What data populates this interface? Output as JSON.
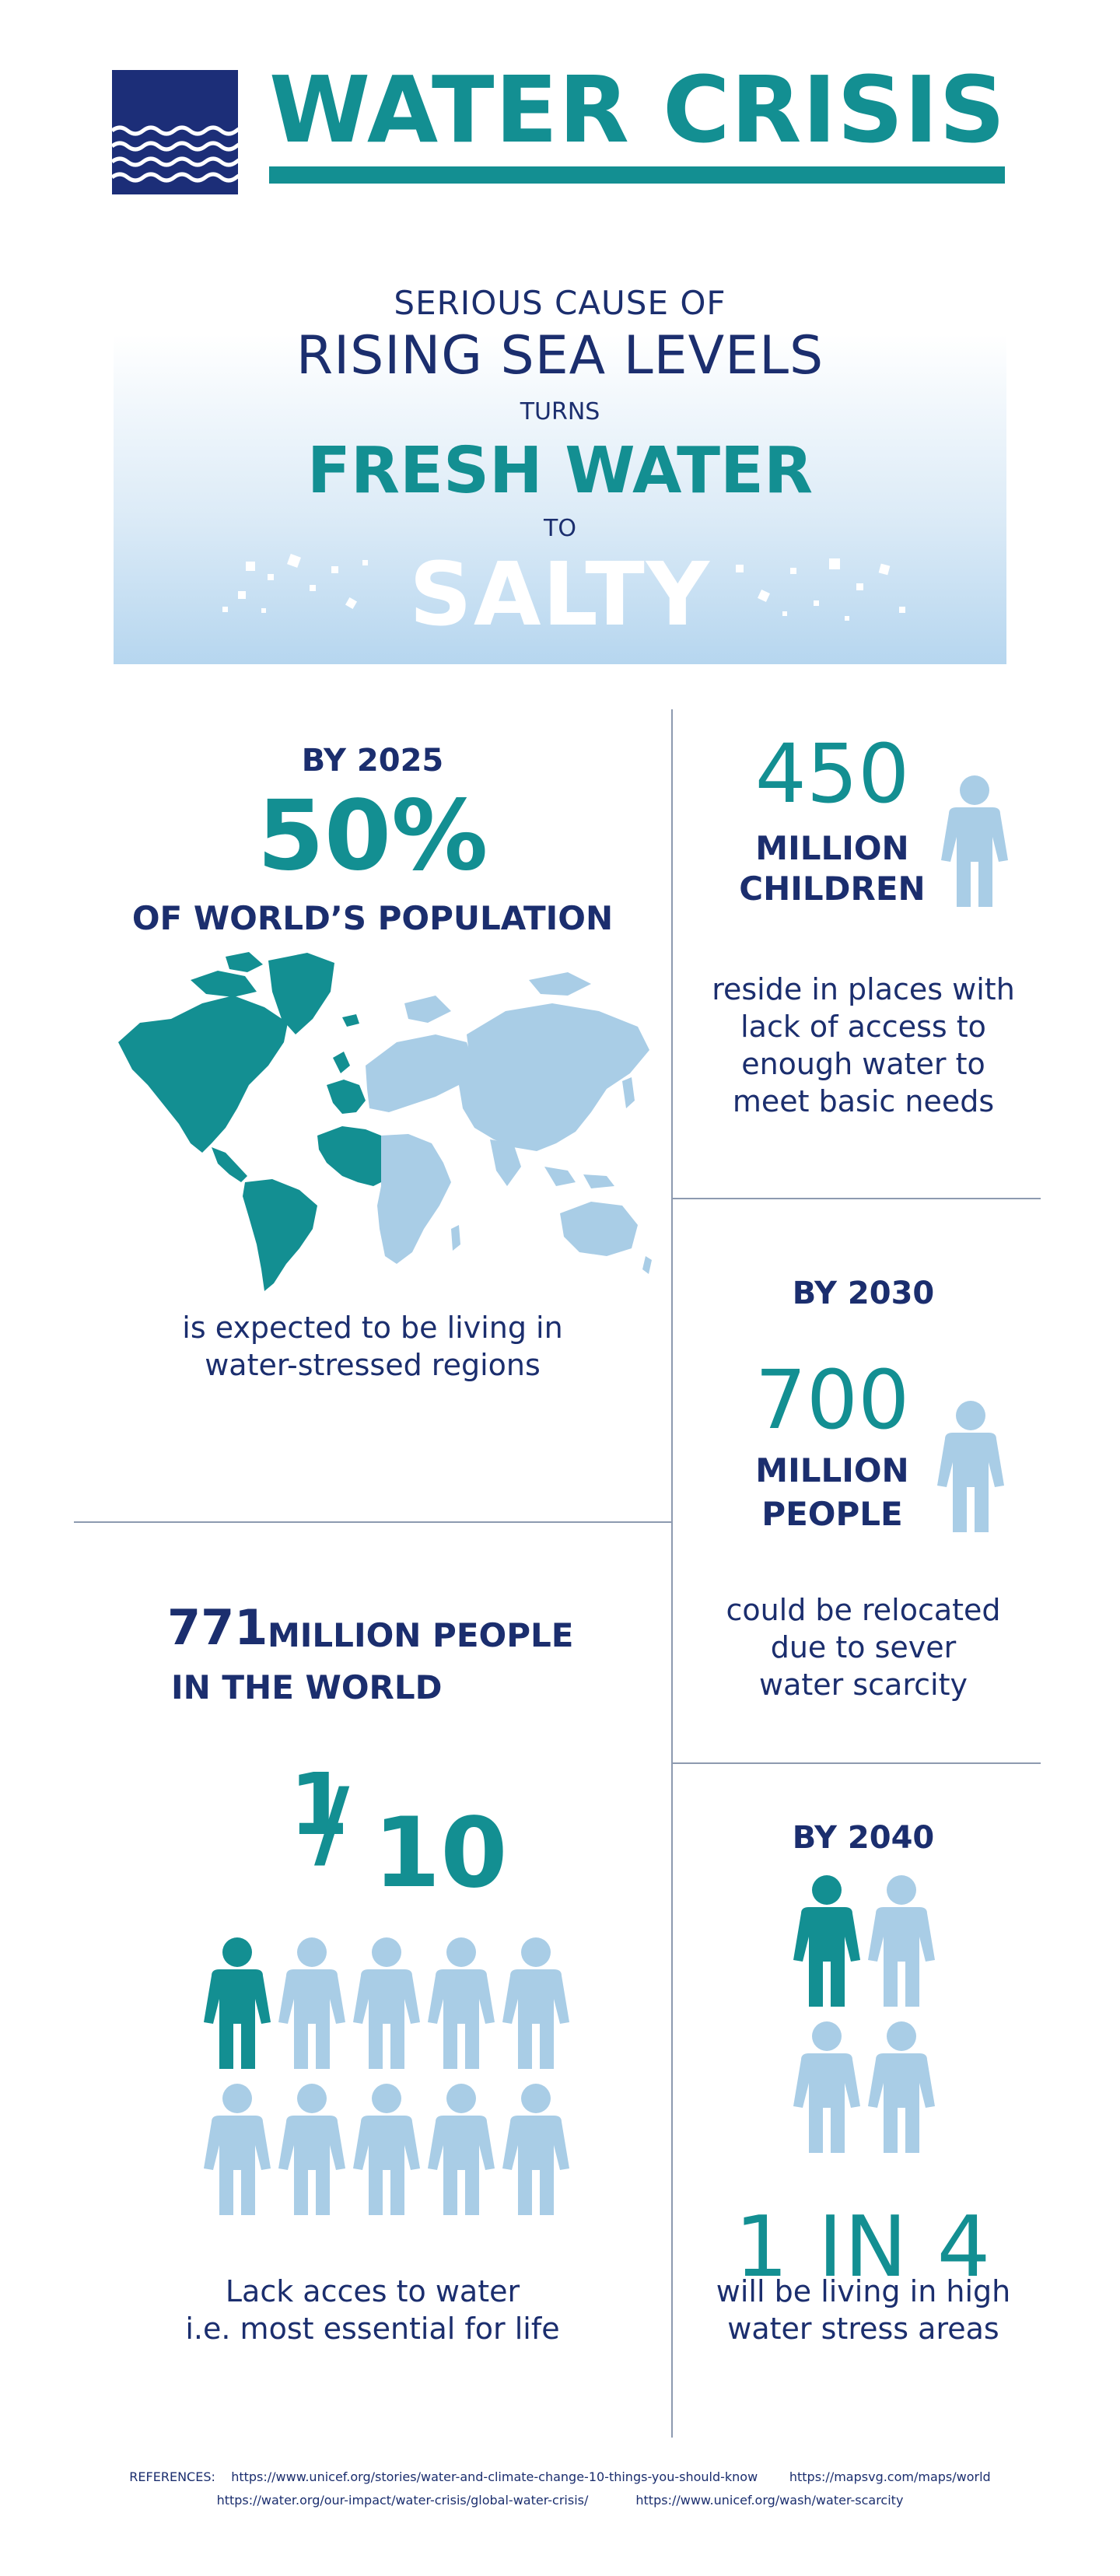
{
  "header": {
    "title": "WATER CRISIS",
    "logo_icon": "water-waves-icon"
  },
  "hero": {
    "line1": "SERIOUS CAUSE OF",
    "line2": "RISING SEA LEVELS",
    "line3": "TURNS",
    "line4": "FRESH WATER",
    "line5": "TO",
    "line6": "SALTY"
  },
  "population_2025": {
    "year": "BY 2025",
    "percent": "50%",
    "subject": "OF WORLD’S POPULATION",
    "caption_1": "is expected to be living in",
    "caption_2": "water-stressed regions",
    "map_icon": "world-map-icon"
  },
  "children": {
    "number": "450",
    "label_1": "MILLION",
    "label_2": "CHILDREN",
    "caption_1": "reside in places with",
    "caption_2": "lack of access to",
    "caption_3": "enough water to",
    "caption_4": "meet basic needs"
  },
  "relocation_2030": {
    "year": "BY 2030",
    "number": "700",
    "label_1": "MILLION",
    "label_2": "PEOPLE",
    "caption_1": "could be relocated",
    "caption_2": "due to sever",
    "caption_3": "water scarcity"
  },
  "world_access": {
    "number": "771",
    "label_1": "MILLION PEOPLE",
    "label_2": "IN THE WORLD",
    "fraction_num": "1",
    "fraction_sep": "/",
    "fraction_den": "10",
    "highlighted_people": 1,
    "total_people": 10,
    "caption_1": "Lack acces to water",
    "caption_2": "i.e. most essential for life"
  },
  "stress_2040": {
    "year": "BY 2040",
    "ratio": "1 IN 4",
    "highlighted_people": 1,
    "total_people": 4,
    "caption_1": "will be living in high",
    "caption_2": "water stress areas"
  },
  "references": {
    "label": "REFERENCES:",
    "ref1": "https://www.unicef.org/stories/water-and-climate-change-10-things-you-should-know",
    "ref2": "https://mapsvg.com/maps/world",
    "ref3": "https://water.org/our-impact/water-crisis/global-water-crisis/",
    "ref4": "https://www.unicef.org/wash/water-scarcity"
  },
  "colors": {
    "navy": "#1b2e6e",
    "teal": "#138f92",
    "light_blue": "#a9cde6",
    "divider": "#8d9ab0"
  }
}
